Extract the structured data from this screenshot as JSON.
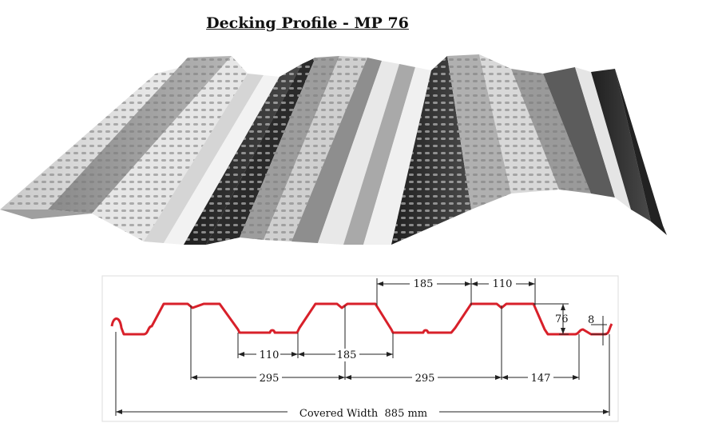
{
  "title": "Decking Profile - MP 76",
  "dimensions": {
    "top_185": "185",
    "top_110": "110",
    "depth_76": "76",
    "lip_8": "8",
    "bottom_110": "110",
    "bottom_185": "185",
    "span_295_a": "295",
    "span_295_b": "295",
    "end_147": "147",
    "covered_width": "Covered Width  885 mm"
  },
  "colors": {
    "profile_line": "#d8202a",
    "dimension_line": "#222222"
  }
}
